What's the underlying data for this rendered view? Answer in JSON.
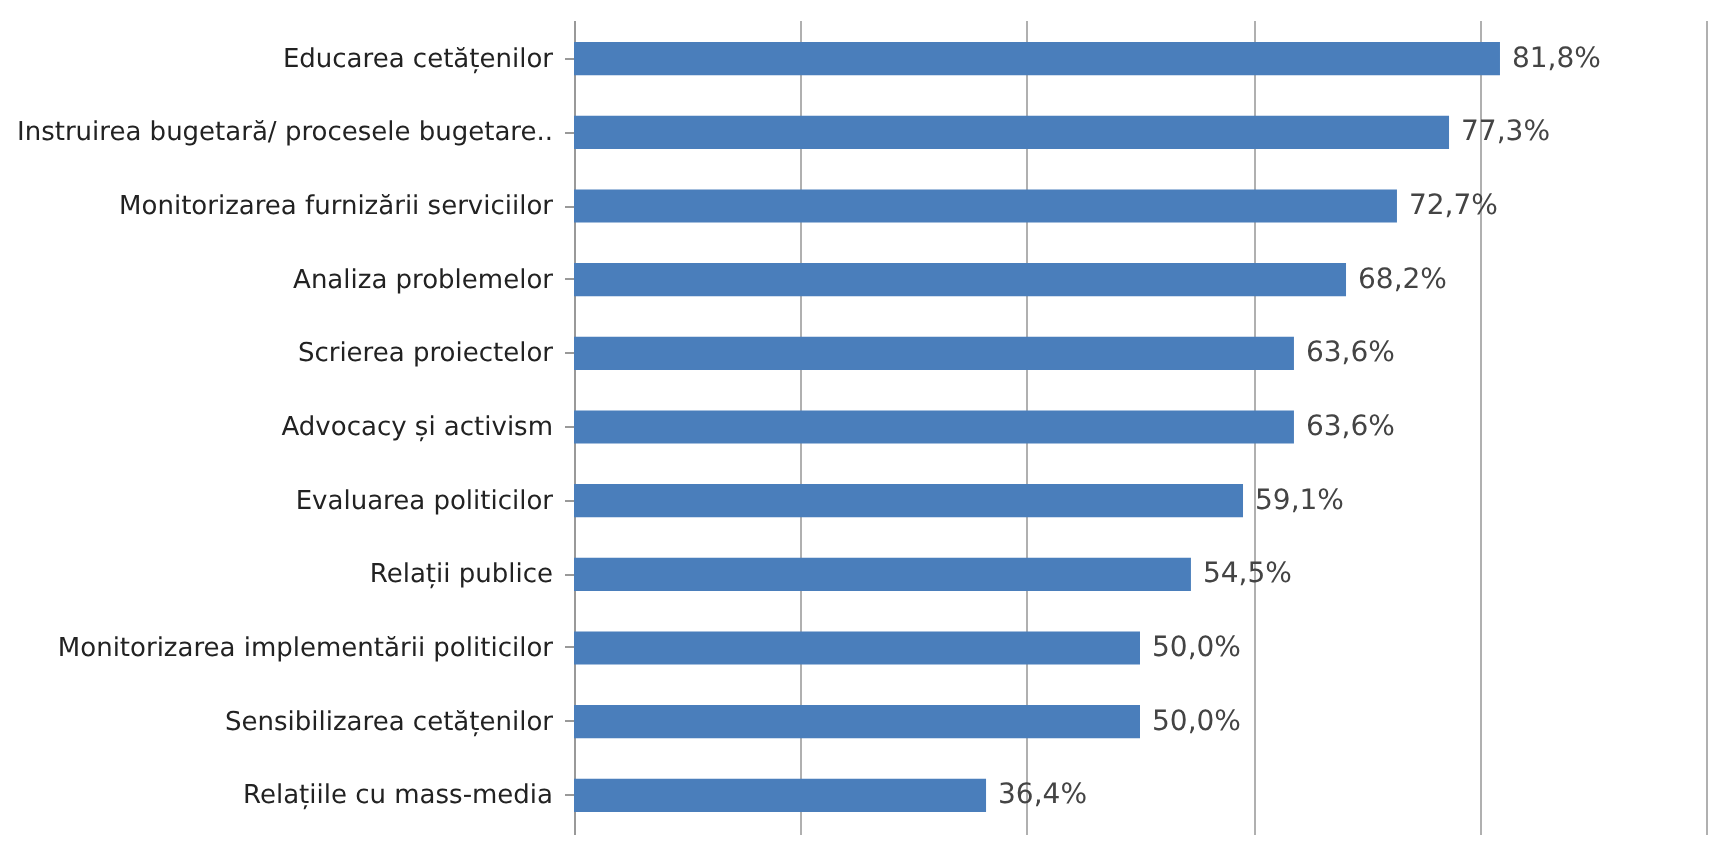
{
  "chart_data": {
    "type": "bar",
    "orientation": "horizontal",
    "categories": [
      "Educarea cetățenilor",
      "Instruirea bugetară/ procesele bugetare..",
      "Monitorizarea furnizării serviciilor",
      "Analiza problemelor",
      "Scrierea proiectelor",
      "Advocacy și activism",
      "Evaluarea politicilor",
      "Relații publice",
      "Monitorizarea implementării politicilor",
      "Sensibilizarea cetățenilor",
      "Relațiile cu mass-media"
    ],
    "values": [
      81.8,
      77.3,
      72.7,
      68.2,
      63.6,
      63.6,
      59.1,
      54.5,
      50.0,
      50.0,
      36.4
    ],
    "value_labels": [
      "81,8%",
      "77,3%",
      "72,7%",
      "68,2%",
      "63,6%",
      "63,6%",
      "59,1%",
      "54,5%",
      "50,0%",
      "50,0%",
      "36,4%"
    ],
    "color": "#4a7ebb",
    "xlim": [
      0,
      100
    ],
    "xticks": [
      {
        "value": 0,
        "label": null
      },
      {
        "value": 20,
        "label": null
      },
      {
        "value": 40,
        "label": null
      },
      {
        "value": 60,
        "label": null
      },
      {
        "value": 80,
        "label": null
      },
      {
        "value": 100,
        "label": null
      }
    ],
    "grid": "x",
    "tick_labels": "y"
  }
}
